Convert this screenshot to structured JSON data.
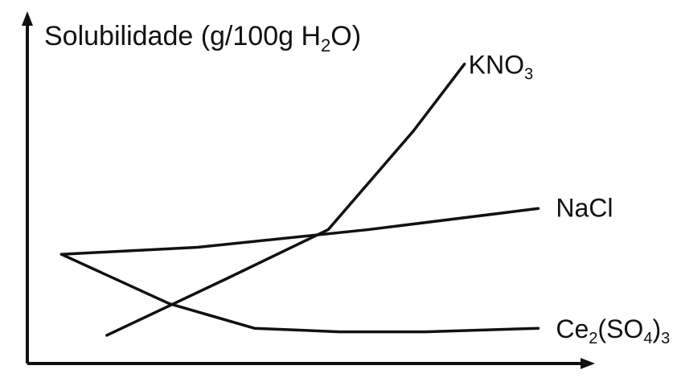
{
  "chart_data": {
    "type": "line",
    "title": "",
    "ylabel": {
      "text": "Solubilidade (g/100g H",
      "sub": "2",
      "text_after": "O)"
    },
    "xlabel": "",
    "xlim": [
      0,
      100
    ],
    "ylim": [
      0,
      100
    ],
    "grid": false,
    "legend": "none",
    "series": [
      {
        "name": "KNO3",
        "label_parts": [
          {
            "t": "KNO",
            "sub": false
          },
          {
            "t": "3",
            "sub": true
          }
        ],
        "color": "#111111",
        "points": [
          [
            14,
            8
          ],
          [
            35,
            24
          ],
          [
            53,
            38
          ],
          [
            68,
            66
          ],
          [
            77,
            85
          ]
        ]
      },
      {
        "name": "NaCl",
        "label_parts": [
          {
            "t": "NaCl",
            "sub": false
          }
        ],
        "color": "#111111",
        "points": [
          [
            6,
            31
          ],
          [
            30,
            33
          ],
          [
            60,
            38
          ],
          [
            90,
            44
          ]
        ]
      },
      {
        "name": "Ce2(SO4)3",
        "label_parts": [
          {
            "t": "Ce",
            "sub": false
          },
          {
            "t": "2",
            "sub": true
          },
          {
            "t": "(SO",
            "sub": false
          },
          {
            "t": "4",
            "sub": true
          },
          {
            "t": ")",
            "sub": false
          },
          {
            "t": "3",
            "sub": true
          }
        ],
        "color": "#111111",
        "points": [
          [
            6,
            31
          ],
          [
            25,
            17
          ],
          [
            40,
            10
          ],
          [
            55,
            9
          ],
          [
            70,
            9
          ],
          [
            90,
            10
          ]
        ]
      }
    ]
  }
}
